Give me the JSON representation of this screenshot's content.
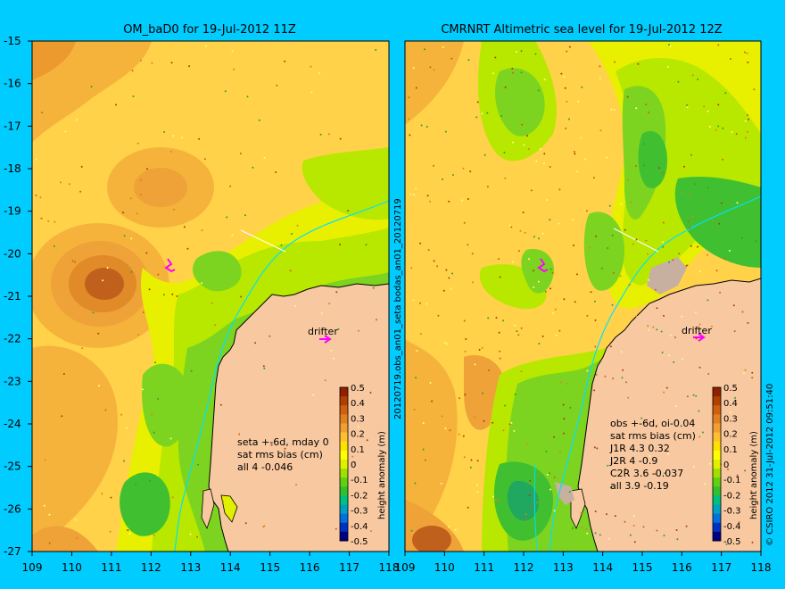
{
  "left_panel": {
    "title": "OM_baD0 for 19-Jul-2012 11Z",
    "stats_lines": [
      "seta +-6d, mday 0",
      "sat rms bias (cm)",
      "all 4 -0.046"
    ],
    "drifter_label": "drifter"
  },
  "right_panel": {
    "title": "CMRNRT Altimetric sea level  for 19-Jul-2012 12Z",
    "stats_lines": [
      "obs +-6d, oi-0.04",
      "sat rms bias (cm)",
      "J1R   4.3 0.32",
      "J2R   4 -0.9",
      "C2R   3.6 -0.037",
      "all 3.9 -0.19"
    ],
    "drifter_label": "drifter"
  },
  "side_label": "20120719.obs_an01_seta    bodas_an01_20120719",
  "credit": "© CSIRO 2012   31-Jul-2012 09:51:40",
  "axes": {
    "lon_ticks": [
      "109",
      "110",
      "111",
      "112",
      "113",
      "114",
      "115",
      "116",
      "117",
      "118"
    ],
    "lat_ticks": [
      "-15",
      "-16",
      "-17",
      "-18",
      "-19",
      "-20",
      "-21",
      "-22",
      "-23",
      "-24",
      "-25",
      "-26",
      "-27"
    ],
    "lon_range": [
      109,
      118
    ],
    "lat_range": [
      -27,
      -15
    ]
  },
  "colorbar": {
    "label": "height anomaly (m)",
    "ticks": [
      "0.5",
      "0.4",
      "0.3",
      "0.2",
      "0.1",
      "0",
      "-0.1",
      "-0.2",
      "-0.3",
      "-0.4",
      "-0.5"
    ],
    "colors": [
      "#000080",
      "#0030c0",
      "#0070e0",
      "#00a0c0",
      "#00c080",
      "#30c030",
      "#60d010",
      "#a0e000",
      "#e0f000",
      "#ffff00",
      "#ffe000",
      "#ffc030",
      "#f0a030",
      "#e08020",
      "#d06010",
      "#b04000",
      "#902000"
    ]
  },
  "map_colors": {
    "land": "#f8c8a0",
    "land_light": "#c8b0a0",
    "coast": "#000000",
    "shelf_line": "#00e0ff",
    "drifter": "#ff00ff"
  }
}
